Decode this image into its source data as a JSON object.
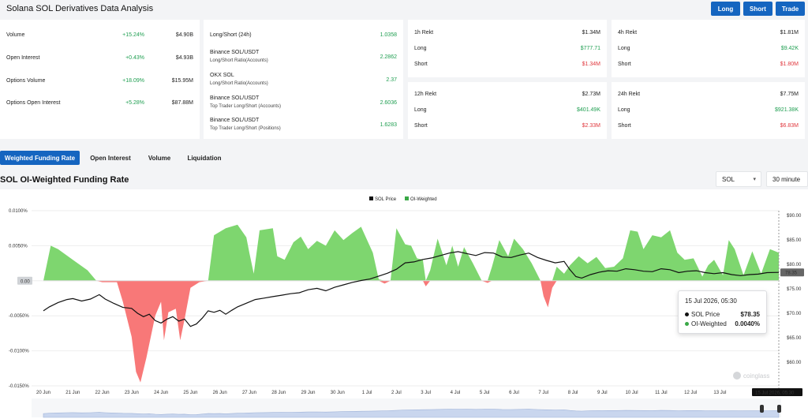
{
  "header": {
    "title": "Solana SOL Derivatives Data Analysis",
    "buttons": {
      "long": "Long",
      "short": "Short",
      "trade": "Trade"
    }
  },
  "stats": [
    {
      "label": "Volume",
      "change": "+15.24%",
      "value": "$4.90B"
    },
    {
      "label": "Open Interest",
      "change": "+0.43%",
      "value": "$4.93B"
    },
    {
      "label": "Options Volume",
      "change": "+18.09%",
      "value": "$15.95M"
    },
    {
      "label": "Options Open Interest",
      "change": "+5.28%",
      "value": "$87.88M"
    }
  ],
  "ratios": [
    {
      "label": "Long/Short (24h)",
      "sub": "",
      "value": "1.0358"
    },
    {
      "label": "Binance SOL/USDT",
      "sub": "Long/Short Ratio(Accounts)",
      "value": "2.2862"
    },
    {
      "label": "OKX SOL",
      "sub": "Long/Short Ratio(Accounts)",
      "value": "2.37"
    },
    {
      "label": "Binance SOL/USDT",
      "sub": "Top Trader Long/Short (Accounts)",
      "value": "2.6036"
    },
    {
      "label": "Binance SOL/USDT",
      "sub": "Top Trader Long/Short (Positions)",
      "value": "1.6283"
    }
  ],
  "rekt": [
    {
      "title": "1h Rekt",
      "total": "$1.34M",
      "long_label": "Long",
      "long": "$777.71",
      "short_label": "Short",
      "short": "$1.34M"
    },
    {
      "title": "4h Rekt",
      "total": "$1.81M",
      "long_label": "Long",
      "long": "$9.42K",
      "short_label": "Short",
      "short": "$1.80M"
    },
    {
      "title": "12h Rekt",
      "total": "$2.73M",
      "long_label": "Long",
      "long": "$401.49K",
      "short_label": "Short",
      "short": "$2.33M"
    },
    {
      "title": "24h Rekt",
      "total": "$7.75M",
      "long_label": "Long",
      "long": "$921.38K",
      "short_label": "Short",
      "short": "$6.83M"
    }
  ],
  "tabs": [
    "Weighted Funding Rate",
    "Open Interest",
    "Volume",
    "Liquidation"
  ],
  "chart_title": "SOL OI-Weighted Funding Rate",
  "selects": {
    "coin": "SOL",
    "interval": "30 minute"
  },
  "tooltip": {
    "date": "15 Jul 2026, 05:30",
    "price_label": "SOL Price",
    "price_value": "$78.35",
    "rate_label": "OI-Weighted",
    "rate_value": "0.0040%"
  },
  "colors": {
    "accent": "#1565c0",
    "positive": "#7ed66f",
    "negative": "#f87878",
    "price_line": "#111111"
  },
  "chart_data": {
    "type": "area",
    "legend": [
      "SOL Price",
      "OI-Weighted"
    ],
    "legend_position": "top-center",
    "x_ticks": [
      "20 Jun",
      "21 Jun",
      "22 Jun",
      "23 Jun",
      "24 Jun",
      "25 Jun",
      "26 Jun",
      "27 Jun",
      "28 Jun",
      "29 Jun",
      "30 Jun",
      "1 Jul",
      "2 Jul",
      "3 Jul",
      "4 Jul",
      "5 Jul",
      "6 Jul",
      "7 Jul",
      "8 Jul",
      "9 Jul",
      "10 Jul",
      "11 Jul",
      "12 Jul",
      "13 Jul"
    ],
    "x_range_days": [
      0,
      25
    ],
    "y_left_ticks": [
      "0.0100%",
      "0.0050%",
      "0.00",
      "-0.0050%",
      "-0.0100%",
      "-0.0150%"
    ],
    "y_left_range": [
      -0.015,
      0.01
    ],
    "y_right_ticks": [
      "$90.00",
      "$85.00",
      "$80.00",
      "$75.00",
      "$70.00",
      "$65.00",
      "$60.00"
    ],
    "y_right_range": [
      60,
      90
    ],
    "current_price_label": "78.35",
    "current_rate_label": "0.00",
    "crosshair_label": "15 Jul 2026, 05:30",
    "series": [
      {
        "name": "OI-Weighted",
        "unit": "%",
        "points": [
          [
            0,
            0
          ],
          [
            0.25,
            0.005
          ],
          [
            0.5,
            0.0045
          ],
          [
            1.0,
            0.003
          ],
          [
            1.5,
            0.0015
          ],
          [
            1.8,
            0
          ],
          [
            2.0,
            -0.0002
          ],
          [
            2.5,
            -0.0002
          ],
          [
            2.7,
            -0.003
          ],
          [
            3.0,
            -0.008
          ],
          [
            3.15,
            -0.013
          ],
          [
            3.3,
            -0.0145
          ],
          [
            3.5,
            -0.011
          ],
          [
            3.8,
            -0.005
          ],
          [
            4.0,
            -0.003
          ],
          [
            4.1,
            -0.0085
          ],
          [
            4.25,
            -0.0045
          ],
          [
            4.5,
            -0.004
          ],
          [
            4.65,
            -0.0085
          ],
          [
            4.8,
            -0.0055
          ],
          [
            5.0,
            -0.001
          ],
          [
            5.3,
            -0.0002
          ],
          [
            5.6,
            0
          ],
          [
            5.8,
            0.0065
          ],
          [
            6.2,
            0.0075
          ],
          [
            6.6,
            0.008
          ],
          [
            6.9,
            0.0062
          ],
          [
            7.0,
            0.004
          ],
          [
            7.15,
            0.001
          ],
          [
            7.35,
            0.0072
          ],
          [
            7.8,
            0.0075
          ],
          [
            7.95,
            0.0035
          ],
          [
            8.2,
            0.003
          ],
          [
            8.5,
            0.0055
          ],
          [
            8.75,
            0.0063
          ],
          [
            9.0,
            0.0045
          ],
          [
            9.3,
            0.0057
          ],
          [
            9.6,
            0.005
          ],
          [
            9.9,
            0.0072
          ],
          [
            10.2,
            0.0058
          ],
          [
            10.5,
            0.0068
          ],
          [
            10.8,
            0.0077
          ],
          [
            11.2,
            0.004
          ],
          [
            11.4,
            0.0002
          ],
          [
            11.6,
            -0.0004
          ],
          [
            11.8,
            0
          ],
          [
            12.0,
            0.0075
          ],
          [
            12.3,
            0.0052
          ],
          [
            12.5,
            0.005
          ],
          [
            12.7,
            0.0032
          ],
          [
            12.9,
            0.003
          ],
          [
            13.0,
            -0.0008
          ],
          [
            13.15,
            0.0015
          ],
          [
            13.4,
            0.006
          ],
          [
            13.7,
            0.0022
          ],
          [
            13.9,
            0.005
          ],
          [
            14.1,
            0.002
          ],
          [
            14.3,
            0.0048
          ],
          [
            14.6,
            0.0025
          ],
          [
            14.9,
            0
          ],
          [
            15.1,
            -0.0003
          ],
          [
            15.25,
            0.002
          ],
          [
            15.5,
            0.0058
          ],
          [
            15.8,
            0.0035
          ],
          [
            16.0,
            0.006
          ],
          [
            16.3,
            0.0045
          ],
          [
            16.6,
            0.0025
          ],
          [
            16.9,
            0
          ],
          [
            17.0,
            -0.0022
          ],
          [
            17.15,
            -0.0038
          ],
          [
            17.3,
            -0.001
          ],
          [
            17.45,
            0.002
          ],
          [
            17.7,
            0.001
          ],
          [
            17.9,
            0.0022
          ],
          [
            18.2,
            0.0035
          ],
          [
            18.5,
            0.0025
          ],
          [
            18.8,
            0.0034
          ],
          [
            19.1,
            0.0018
          ],
          [
            19.4,
            0.002
          ],
          [
            19.7,
            0.0032
          ],
          [
            19.95,
            0.0072
          ],
          [
            20.2,
            0.007
          ],
          [
            20.4,
            0.0045
          ],
          [
            20.7,
            0.0065
          ],
          [
            21.0,
            0.0062
          ],
          [
            21.3,
            0.0072
          ],
          [
            21.55,
            0.004
          ],
          [
            21.8,
            0.003
          ],
          [
            22.1,
            0.0032
          ],
          [
            22.4,
            0.0006
          ],
          [
            22.6,
            0.0022
          ],
          [
            22.8,
            0.003
          ],
          [
            23.1,
            0.0008
          ],
          [
            23.3,
            0.0058
          ],
          [
            23.5,
            0.0045
          ],
          [
            23.8,
            0.0008
          ],
          [
            24.1,
            0.0042
          ],
          [
            24.4,
            0.001
          ],
          [
            24.7,
            0.0045
          ],
          [
            25.0,
            0.004
          ]
        ]
      },
      {
        "name": "SOL Price",
        "unit": "$",
        "points": [
          [
            0,
            70.5
          ],
          [
            0.2,
            71.3
          ],
          [
            0.5,
            72.2
          ],
          [
            0.8,
            72.8
          ],
          [
            1.0,
            73.0
          ],
          [
            1.3,
            72.5
          ],
          [
            1.6,
            72.9
          ],
          [
            1.9,
            73.8
          ],
          [
            2.1,
            72.9
          ],
          [
            2.4,
            72.0
          ],
          [
            2.7,
            71.2
          ],
          [
            3.0,
            71.0
          ],
          [
            3.2,
            70.0
          ],
          [
            3.4,
            69.3
          ],
          [
            3.6,
            69.8
          ],
          [
            3.8,
            68.5
          ],
          [
            4.0,
            68.0
          ],
          [
            4.2,
            68.8
          ],
          [
            4.4,
            69.3
          ],
          [
            4.6,
            68.4
          ],
          [
            4.8,
            68.8
          ],
          [
            5.0,
            67.3
          ],
          [
            5.2,
            67.8
          ],
          [
            5.4,
            69.0
          ],
          [
            5.6,
            70.5
          ],
          [
            5.8,
            70.2
          ],
          [
            6.0,
            70.6
          ],
          [
            6.2,
            69.8
          ],
          [
            6.4,
            70.6
          ],
          [
            6.6,
            71.3
          ],
          [
            6.8,
            71.8
          ],
          [
            7.0,
            72.3
          ],
          [
            7.2,
            72.8
          ],
          [
            7.5,
            73.1
          ],
          [
            7.8,
            73.4
          ],
          [
            8.1,
            73.7
          ],
          [
            8.4,
            74.0
          ],
          [
            8.7,
            74.2
          ],
          [
            9.0,
            74.8
          ],
          [
            9.3,
            75.1
          ],
          [
            9.6,
            74.6
          ],
          [
            9.9,
            75.3
          ],
          [
            10.2,
            75.8
          ],
          [
            10.5,
            76.3
          ],
          [
            10.8,
            76.7
          ],
          [
            11.1,
            77.0
          ],
          [
            11.4,
            77.6
          ],
          [
            11.7,
            78.2
          ],
          [
            12.0,
            79.0
          ],
          [
            12.3,
            80.3
          ],
          [
            12.6,
            80.5
          ],
          [
            12.9,
            81.0
          ],
          [
            13.2,
            81.3
          ],
          [
            13.5,
            81.8
          ],
          [
            13.8,
            82.3
          ],
          [
            14.1,
            82.6
          ],
          [
            14.4,
            82.2
          ],
          [
            14.7,
            81.8
          ],
          [
            15.0,
            82.4
          ],
          [
            15.3,
            82.3
          ],
          [
            15.6,
            81.5
          ],
          [
            15.9,
            81.4
          ],
          [
            16.2,
            81.9
          ],
          [
            16.5,
            82.3
          ],
          [
            16.8,
            81.4
          ],
          [
            17.1,
            80.8
          ],
          [
            17.4,
            80.3
          ],
          [
            17.7,
            80.6
          ],
          [
            17.9,
            78.9
          ],
          [
            18.1,
            77.5
          ],
          [
            18.3,
            77.2
          ],
          [
            18.6,
            77.9
          ],
          [
            18.9,
            78.4
          ],
          [
            19.2,
            78.7
          ],
          [
            19.5,
            78.6
          ],
          [
            19.8,
            79.1
          ],
          [
            20.1,
            78.9
          ],
          [
            20.4,
            78.6
          ],
          [
            20.7,
            78.5
          ],
          [
            21.0,
            79.1
          ],
          [
            21.3,
            78.9
          ],
          [
            21.6,
            78.3
          ],
          [
            21.9,
            78.6
          ],
          [
            22.2,
            78.7
          ],
          [
            22.5,
            78.3
          ],
          [
            22.8,
            78.1
          ],
          [
            23.1,
            78.3
          ],
          [
            23.4,
            77.9
          ],
          [
            23.7,
            77.7
          ],
          [
            24.0,
            77.9
          ],
          [
            24.3,
            78.0
          ],
          [
            24.6,
            78.3
          ],
          [
            25.0,
            78.35
          ]
        ]
      }
    ]
  }
}
